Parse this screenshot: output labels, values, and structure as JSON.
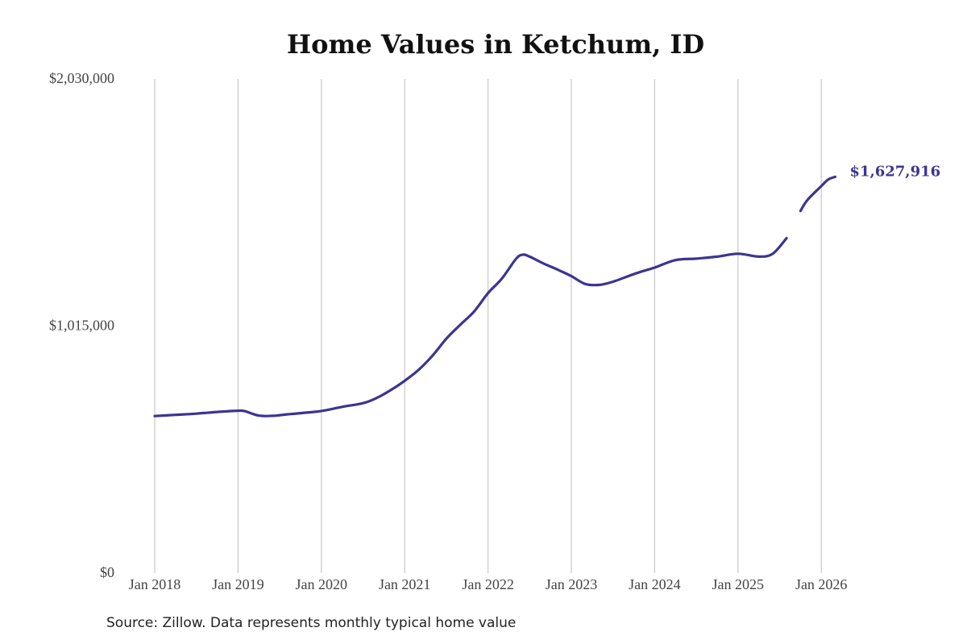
{
  "chart_data": {
    "type": "line",
    "title": "Home Values in Ketchum, ID",
    "xlabel": "",
    "ylabel": "",
    "ylim": [
      0,
      2030000
    ],
    "y_ticks": [
      {
        "value": 0,
        "label": "$0"
      },
      {
        "value": 1015000,
        "label": "$1,015,000"
      },
      {
        "value": 2030000,
        "label": "$2,030,000"
      }
    ],
    "x_ticks": [
      "Jan 2018",
      "Jan 2019",
      "Jan 2020",
      "Jan 2021",
      "Jan 2022",
      "Jan 2023",
      "Jan 2024",
      "Jan 2025",
      "Jan 2026"
    ],
    "grid": "vertical",
    "color": "#3b3590",
    "series": [
      {
        "segments": [
          [
            [
              "2018-01",
              645000
            ],
            [
              "2018-04",
              650000
            ],
            [
              "2018-07",
              655000
            ],
            [
              "2018-10",
              662000
            ],
            [
              "2019-01",
              667000
            ],
            [
              "2019-02",
              665000
            ],
            [
              "2019-04",
              647000
            ],
            [
              "2019-06",
              646000
            ],
            [
              "2019-08",
              652000
            ],
            [
              "2019-10",
              657000
            ],
            [
              "2020-01",
              666000
            ],
            [
              "2020-04",
              683000
            ],
            [
              "2020-07",
              698000
            ],
            [
              "2020-09",
              720000
            ],
            [
              "2020-11",
              752000
            ],
            [
              "2021-01",
              790000
            ],
            [
              "2021-03",
              835000
            ],
            [
              "2021-05",
              893000
            ],
            [
              "2021-07",
              963000
            ],
            [
              "2021-09",
              1020000
            ],
            [
              "2021-11",
              1075000
            ],
            [
              "2022-01",
              1150000
            ],
            [
              "2022-03",
              1210000
            ],
            [
              "2022-05",
              1290000
            ],
            [
              "2022-06",
              1308000
            ],
            [
              "2022-07",
              1300000
            ],
            [
              "2022-09",
              1272000
            ],
            [
              "2022-11",
              1247000
            ],
            [
              "2023-01",
              1220000
            ],
            [
              "2023-03",
              1188000
            ],
            [
              "2023-05",
              1184000
            ],
            [
              "2023-07",
              1197000
            ],
            [
              "2023-09",
              1218000
            ],
            [
              "2023-11",
              1238000
            ],
            [
              "2024-01",
              1255000
            ],
            [
              "2024-04",
              1286000
            ],
            [
              "2024-07",
              1292000
            ],
            [
              "2024-10",
              1300000
            ],
            [
              "2025-01",
              1312000
            ],
            [
              "2025-04",
              1300000
            ],
            [
              "2025-06",
              1312000
            ],
            [
              "2025-08",
              1376000
            ]
          ],
          [
            [
              "2025-10",
              1488000
            ],
            [
              "2025-11",
              1533000
            ],
            [
              "2026-01",
              1590000
            ],
            [
              "2026-02",
              1617000
            ],
            [
              "2026-03",
              1627916
            ]
          ]
        ]
      }
    ],
    "end_label": "$1,627,916"
  },
  "footer": {
    "source": "Source: Zillow. Data represents monthly typical home value"
  }
}
